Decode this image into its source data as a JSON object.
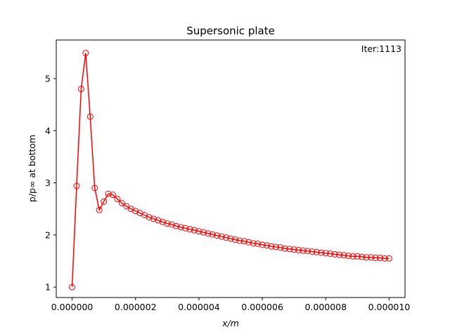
{
  "chart_data": {
    "type": "line",
    "title": "Supersonic plate",
    "annotation": "Iter:1113",
    "xlabel": "x/m",
    "ylabel": "p/p∞ at bottom",
    "xlim": [
      -5e-07,
      1.05e-05
    ],
    "ylim": [
      0.8,
      5.74
    ],
    "xticks": [
      0,
      2e-06,
      4e-06,
      6e-06,
      8e-06,
      1e-05
    ],
    "xtick_labels": [
      "0.000000",
      "0.000002",
      "0.000004",
      "0.000006",
      "0.000008",
      "0.000010"
    ],
    "yticks": [
      1,
      2,
      3,
      4,
      5
    ],
    "ytick_labels": [
      "1",
      "2",
      "3",
      "4",
      "5"
    ],
    "grid": false,
    "series": [
      {
        "color": "#ff0000",
        "marker": "open-circle",
        "x": [
          0,
          1.43e-07,
          2.86e-07,
          4.29e-07,
          5.71e-07,
          7.14e-07,
          8.57e-07,
          1e-06,
          1.143e-06,
          1.286e-06,
          1.429e-06,
          1.571e-06,
          1.714e-06,
          1.857e-06,
          2e-06,
          2.143e-06,
          2.286e-06,
          2.429e-06,
          2.571e-06,
          2.714e-06,
          2.857e-06,
          3e-06,
          3.143e-06,
          3.286e-06,
          3.429e-06,
          3.571e-06,
          3.714e-06,
          3.857e-06,
          4e-06,
          4.143e-06,
          4.286e-06,
          4.429e-06,
          4.571e-06,
          4.714e-06,
          4.857e-06,
          5e-06,
          5.143e-06,
          5.286e-06,
          5.429e-06,
          5.571e-06,
          5.714e-06,
          5.857e-06,
          6e-06,
          6.143e-06,
          6.286e-06,
          6.429e-06,
          6.571e-06,
          6.714e-06,
          6.857e-06,
          7e-06,
          7.143e-06,
          7.286e-06,
          7.429e-06,
          7.571e-06,
          7.714e-06,
          7.857e-06,
          8e-06,
          8.143e-06,
          8.286e-06,
          8.429e-06,
          8.571e-06,
          8.714e-06,
          8.857e-06,
          9e-06,
          9.143e-06,
          9.286e-06,
          9.429e-06,
          9.571e-06,
          9.714e-06,
          9.857e-06,
          1e-05
        ],
        "y": [
          1.0,
          2.94,
          4.8,
          5.49,
          4.27,
          2.9,
          2.48,
          2.64,
          2.79,
          2.77,
          2.69,
          2.61,
          2.55,
          2.5,
          2.46,
          2.42,
          2.38,
          2.34,
          2.31,
          2.28,
          2.25,
          2.22,
          2.2,
          2.17,
          2.15,
          2.13,
          2.11,
          2.09,
          2.07,
          2.05,
          2.03,
          2.01,
          1.99,
          1.97,
          1.95,
          1.93,
          1.91,
          1.89,
          1.88,
          1.86,
          1.84,
          1.83,
          1.81,
          1.8,
          1.78,
          1.77,
          1.76,
          1.74,
          1.73,
          1.72,
          1.71,
          1.7,
          1.69,
          1.68,
          1.67,
          1.66,
          1.65,
          1.64,
          1.63,
          1.62,
          1.61,
          1.6,
          1.59,
          1.59,
          1.58,
          1.57,
          1.57,
          1.56,
          1.56,
          1.55,
          1.55
        ]
      }
    ]
  }
}
